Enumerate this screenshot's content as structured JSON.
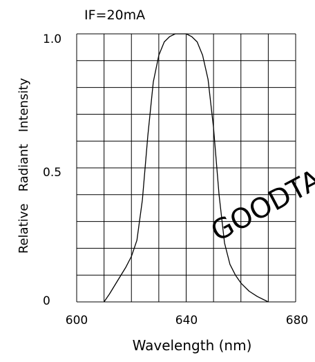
{
  "chart_data": {
    "type": "line",
    "condition": "IF=20mA",
    "xlabel": "Wavelength (nm)",
    "ylabel": "Relative   Radiant   Intensity",
    "xlim": [
      600,
      680
    ],
    "ylim": [
      0,
      1.0
    ],
    "x_ticks": [
      "600",
      "640",
      "680"
    ],
    "y_ticks": [
      "0",
      "0.5",
      "1.0"
    ],
    "grid": true,
    "series": [
      {
        "x": [
          610,
          612,
          615,
          618,
          620,
          622,
          624,
          626,
          628,
          630,
          632,
          634,
          636,
          638,
          640,
          642,
          644,
          646,
          648,
          650,
          652,
          654,
          656,
          658,
          660,
          663,
          666,
          670
        ],
        "y": [
          0.0,
          0.03,
          0.08,
          0.13,
          0.17,
          0.23,
          0.38,
          0.62,
          0.82,
          0.92,
          0.97,
          0.99,
          1.0,
          1.0,
          1.0,
          0.99,
          0.97,
          0.92,
          0.83,
          0.65,
          0.4,
          0.22,
          0.14,
          0.1,
          0.07,
          0.04,
          0.02,
          0.0
        ]
      }
    ]
  },
  "watermark": "GOODTA",
  "colors": {
    "line": "#000000",
    "grid": "#000000",
    "watermark": "#d6d6d6"
  }
}
